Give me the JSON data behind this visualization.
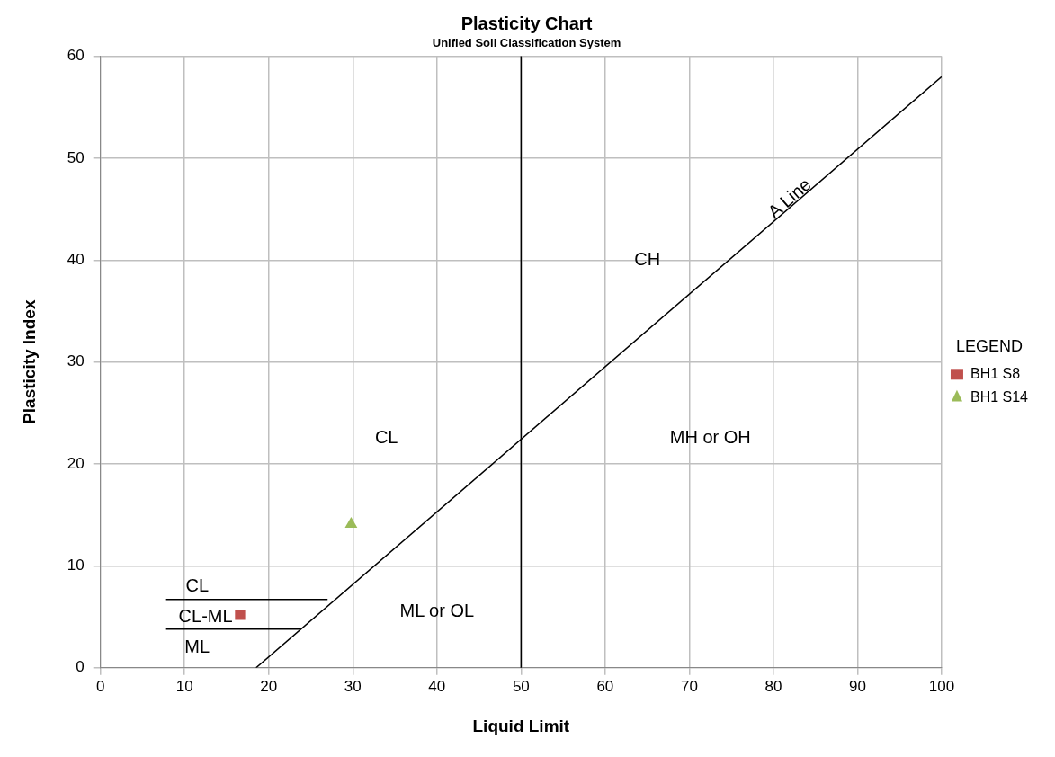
{
  "chart_data": {
    "type": "scatter",
    "title": "Plasticity Chart",
    "subtitle": "Unified Soil Classification System",
    "xlabel": "Liquid Limit",
    "ylabel": "Plasticity Index",
    "legend_title": "LEGEND",
    "xlim": [
      0,
      100
    ],
    "xticks": [
      0,
      10,
      20,
      30,
      40,
      50,
      60,
      70,
      80,
      90,
      100
    ],
    "ylim": [
      0,
      60
    ],
    "yticks": [
      0,
      10,
      20,
      30,
      40,
      50,
      60
    ],
    "grid": true,
    "legend": "right",
    "series": [
      {
        "name": "BH1 S8",
        "marker": "square",
        "color": "#c0504d",
        "x": [
          16.6
        ],
        "values": [
          5.2
        ]
      },
      {
        "name": "BH1 S14",
        "marker": "triangle",
        "color": "#9bbb59",
        "x": [
          29.8
        ],
        "values": [
          14.1
        ]
      },
      {
        "type": "line",
        "marker": "none",
        "color": "#000000",
        "x": [
          18.5,
          100
        ],
        "values": [
          0,
          58
        ]
      },
      {
        "type": "line",
        "marker": "none",
        "color": "#000000",
        "x": [
          7.8,
          27
        ],
        "values": [
          6.7,
          6.7
        ]
      },
      {
        "type": "line",
        "marker": "none",
        "color": "#000000",
        "x": [
          7.8,
          23.8
        ],
        "values": [
          3.8,
          3.8
        ]
      }
    ],
    "ref_lines": [
      {
        "axis": "x",
        "value": 50,
        "color": "#000000"
      }
    ],
    "annotations": [
      "A Line",
      "CH",
      "CL",
      "MH or OH",
      "ML or OL",
      "CL",
      "CL-ML",
      "ML"
    ]
  }
}
